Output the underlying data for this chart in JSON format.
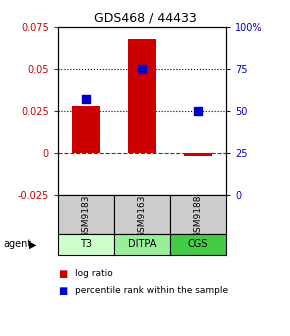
{
  "title": "GDS468 / 44433",
  "samples": [
    "GSM9183",
    "GSM9163",
    "GSM9188"
  ],
  "agents": [
    "T3",
    "DITPA",
    "CGS"
  ],
  "log_ratios": [
    0.028,
    0.068,
    -0.002
  ],
  "percentile_ranks": [
    57,
    75,
    50
  ],
  "bar_color": "#cc0000",
  "dot_color": "#0000cc",
  "ylim_left": [
    -0.025,
    0.075
  ],
  "ylim_right": [
    0,
    100
  ],
  "yticks_left": [
    -0.025,
    0,
    0.025,
    0.05,
    0.075
  ],
  "ytick_labels_left": [
    "-0.025",
    "0",
    "0.025",
    "0.05",
    "0.075"
  ],
  "yticks_right": [
    0,
    25,
    50,
    75,
    100
  ],
  "ytick_labels_right": [
    "0",
    "25",
    "50",
    "75",
    "100%"
  ],
  "grid_lines": [
    0.025,
    0.05
  ],
  "zero_line": 0.0,
  "agent_colors": [
    "#ccffcc",
    "#99ee99",
    "#44cc44"
  ],
  "sample_box_color": "#cccccc",
  "bar_width": 0.5,
  "dot_size": 40,
  "left_tick_color": "#cc0000",
  "right_tick_color": "#0000cc",
  "legend_log_ratio_color": "#cc0000",
  "legend_percentile_color": "#0000cc",
  "title_fontsize": 9,
  "tick_fontsize": 7,
  "label_fontsize": 6.5
}
